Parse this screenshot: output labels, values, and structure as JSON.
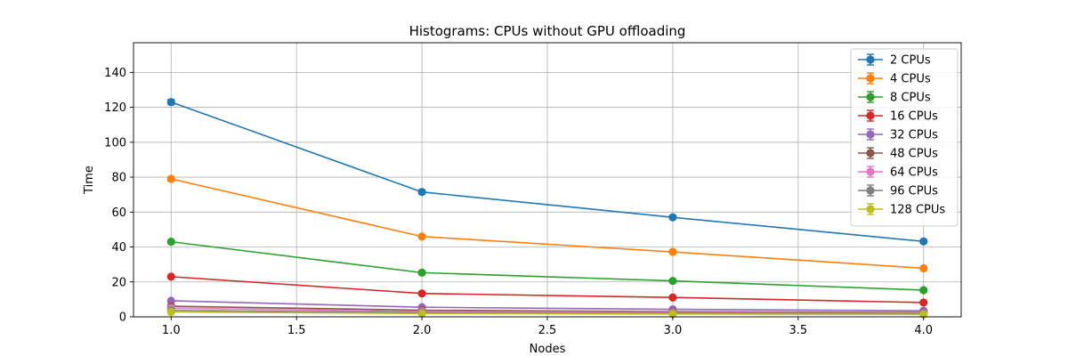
{
  "chart_data": {
    "type": "line",
    "title": "Histograms: CPUs without GPU offloading",
    "xlabel": "Nodes",
    "ylabel": "Time",
    "xlim": [
      0.85,
      4.15
    ],
    "ylim": [
      0,
      157
    ],
    "xticks": [
      "1.0",
      "1.5",
      "2.0",
      "2.5",
      "3.0",
      "3.5",
      "4.0"
    ],
    "yticks": [
      "0",
      "20",
      "40",
      "60",
      "80",
      "100",
      "120",
      "140"
    ],
    "grid": true,
    "error_bars": true,
    "legend_position": "top-right",
    "x": [
      1,
      2,
      3,
      4
    ],
    "series": [
      {
        "name": "2 CPUs",
        "color": "#1f77b4",
        "values": [
          123,
          71.5,
          57,
          43.2
        ],
        "errors": [
          1.5,
          1.2,
          1.0,
          0.9
        ]
      },
      {
        "name": "4 CPUs",
        "color": "#ff7f0e",
        "values": [
          79,
          46,
          37.2,
          27.8
        ],
        "errors": [
          1.2,
          0.9,
          0.8,
          0.6
        ]
      },
      {
        "name": "8 CPUs",
        "color": "#2ca02c",
        "values": [
          43,
          25.3,
          20.6,
          15.3
        ],
        "errors": [
          1.0,
          0.6,
          0.5,
          0.4
        ]
      },
      {
        "name": "16 CPUs",
        "color": "#d62728",
        "values": [
          23,
          13.4,
          11.1,
          8.2
        ],
        "errors": [
          0.5,
          0.4,
          0.3,
          0.3
        ]
      },
      {
        "name": "32 CPUs",
        "color": "#9467bd",
        "values": [
          9.2,
          5.5,
          4.3,
          3.5
        ],
        "errors": [
          0.3,
          0.2,
          0.2,
          0.2
        ]
      },
      {
        "name": "48 CPUs",
        "color": "#8c564b",
        "values": [
          6.1,
          3.8,
          3.0,
          2.5
        ],
        "errors": [
          0.2,
          0.2,
          0.1,
          0.1
        ]
      },
      {
        "name": "64 CPUs",
        "color": "#e377c2",
        "values": [
          5.0,
          3.1,
          2.5,
          2.1
        ],
        "errors": [
          0.2,
          0.1,
          0.1,
          0.1
        ]
      },
      {
        "name": "96 CPUs",
        "color": "#7f7f7f",
        "values": [
          3.7,
          2.4,
          2.0,
          1.7
        ],
        "errors": [
          0.2,
          0.1,
          0.1,
          0.1
        ]
      },
      {
        "name": "128 CPUs",
        "color": "#bcbd22",
        "values": [
          2.8,
          1.9,
          1.6,
          1.4
        ],
        "errors": [
          0.1,
          0.1,
          0.1,
          0.1
        ]
      }
    ]
  }
}
